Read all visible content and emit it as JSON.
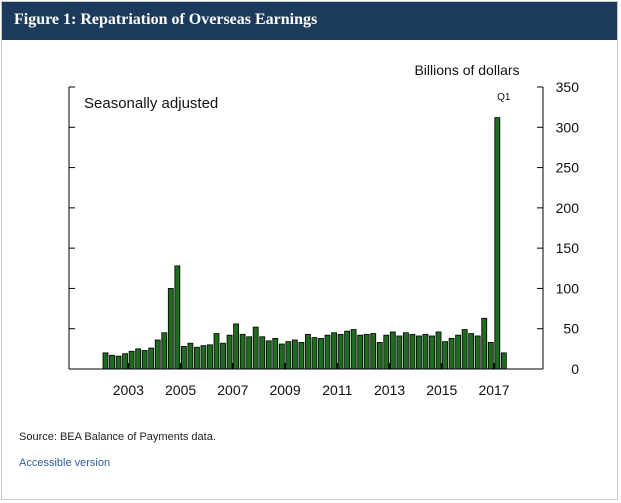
{
  "header": {
    "title": "Figure 1: Repatriation of Overseas Earnings"
  },
  "footer": {
    "source": "Source: BEA Balance of Payments data.",
    "accessible_link": "Accessible version"
  },
  "colors": {
    "header_bg": "#1b3a5c",
    "bar_fill": "#1f6b1f",
    "bar_stroke": "#000000",
    "link": "#2f5f9e"
  },
  "chart_data": {
    "type": "bar",
    "title": "",
    "units_label": "Billions of dollars",
    "note": "Seasonally adjusted",
    "annotation": {
      "text": "Q1",
      "index": 61
    },
    "ylim": [
      0,
      350
    ],
    "yticks": [
      0,
      50,
      100,
      150,
      200,
      250,
      300,
      350
    ],
    "xtick_labels": [
      "2003",
      "2005",
      "2007",
      "2009",
      "2011",
      "2013",
      "2015",
      "2017"
    ],
    "xtick_quarters": [
      4,
      12,
      20,
      28,
      36,
      44,
      52,
      60
    ],
    "start": "2003 Q1",
    "frequency": "quarterly",
    "values": [
      20,
      17,
      16,
      19,
      22,
      25,
      23,
      26,
      36,
      45,
      100,
      128,
      28,
      32,
      27,
      29,
      30,
      44,
      32,
      42,
      56,
      43,
      40,
      52,
      40,
      35,
      38,
      31,
      34,
      36,
      33,
      43,
      39,
      38,
      42,
      45,
      43,
      47,
      49,
      42,
      43,
      44,
      33,
      42,
      46,
      41,
      45,
      43,
      41,
      43,
      41,
      46,
      34,
      38,
      42,
      49,
      44,
      41,
      63,
      33,
      312,
      20
    ]
  }
}
